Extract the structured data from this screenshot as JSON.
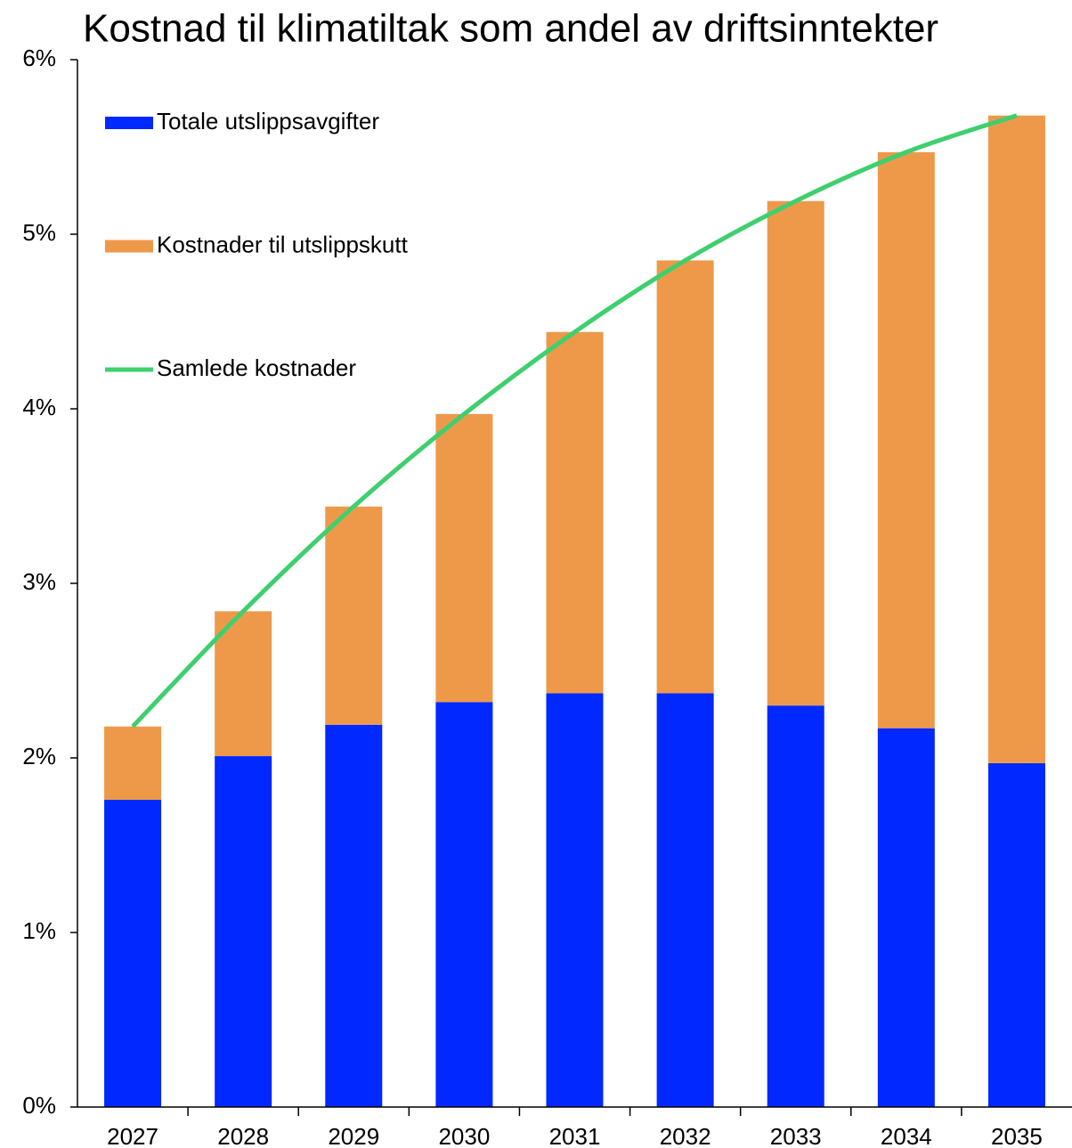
{
  "chart_data": {
    "type": "stacked_bar_line",
    "title": "Kostnad til klimatiltak som andel av driftsinntekter",
    "categories": [
      "2027",
      "2028",
      "2029",
      "2030",
      "2031",
      "2032",
      "2033",
      "2034",
      "2035"
    ],
    "series": [
      {
        "name": "Totale utslippsavgifter",
        "color": "#0028ff",
        "kind": "bar",
        "values": [
          1.76,
          2.01,
          2.19,
          2.32,
          2.37,
          2.37,
          2.3,
          2.17,
          1.97
        ]
      },
      {
        "name": "Kostnader til utslippskutt",
        "color": "#ee994a",
        "kind": "bar",
        "values": [
          0.42,
          0.83,
          1.25,
          1.65,
          2.07,
          2.48,
          2.89,
          3.3,
          3.71
        ]
      },
      {
        "name": "Samlede kostnader",
        "color": "#3ecf6e",
        "kind": "line",
        "values": [
          2.18,
          2.84,
          3.44,
          3.97,
          4.44,
          4.85,
          5.19,
          5.47,
          5.68
        ]
      }
    ],
    "ylim": [
      0,
      6
    ],
    "yticks": [
      {
        "value": 0,
        "label": "0%"
      },
      {
        "value": 1,
        "label": "1%"
      },
      {
        "value": 2,
        "label": "2%"
      },
      {
        "value": 3,
        "label": "3%"
      },
      {
        "value": 4,
        "label": "4%"
      },
      {
        "value": 5,
        "label": "5%"
      },
      {
        "value": 6,
        "label": "6%"
      }
    ],
    "grid": false,
    "legend": "upper left"
  }
}
